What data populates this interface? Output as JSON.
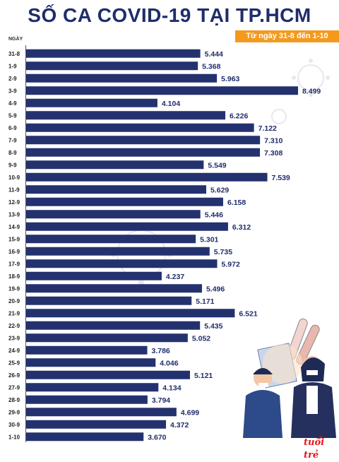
{
  "header": {
    "title": "SỐ CA COVID-19 TẠI TP.HCM",
    "date_range": "Từ ngày 31-8 đến 1-10"
  },
  "axis": {
    "category_label": "NGÀY"
  },
  "colors": {
    "bar": "#23326f",
    "accent": "#f39a1e",
    "title": "#1f2d6b"
  },
  "chart_data": {
    "type": "bar",
    "orientation": "horizontal",
    "title": "SỐ CA COVID-19 TẠI TP.HCM",
    "subtitle": "Từ ngày 31-8 đến 1-10",
    "xlabel": "",
    "ylabel": "NGÀY",
    "xlim": [
      0,
      8499
    ],
    "grid": false,
    "categories": [
      "31-8",
      "1-9",
      "2-9",
      "3-9",
      "4-9",
      "5-9",
      "6-9",
      "7-9",
      "8-9",
      "9-9",
      "10-9",
      "11-9",
      "12-9",
      "13-9",
      "14-9",
      "15-9",
      "16-9",
      "17-9",
      "18-9",
      "19-9",
      "20-9",
      "21-9",
      "22-9",
      "23-9",
      "24-9",
      "25-9",
      "26-9",
      "27-9",
      "28-9",
      "29-9",
      "30-9",
      "1-10"
    ],
    "values": [
      5444,
      5368,
      5963,
      8499,
      4104,
      6226,
      7122,
      7310,
      7308,
      5549,
      7539,
      5629,
      6158,
      5446,
      6312,
      5301,
      5735,
      5972,
      4237,
      5496,
      5171,
      6521,
      5435,
      5052,
      3786,
      4046,
      5121,
      4134,
      3794,
      4699,
      4372,
      3670
    ],
    "labels": [
      "5.444",
      "5.368",
      "5.963",
      "8.499",
      "4.104",
      "6.226",
      "7.122",
      "7.310",
      "7.308",
      "5.549",
      "7.539",
      "5.629",
      "6.158",
      "5.446",
      "6.312",
      "5.301",
      "5.735",
      "5.972",
      "4.237",
      "5.496",
      "5.171",
      "6.521",
      "5.435",
      "5.052",
      "3.786",
      "4.046",
      "5.121",
      "4.134",
      "3.794",
      "4.699",
      "4.372",
      "3.670"
    ]
  },
  "branding": {
    "logo_text": "tuổi trẻ"
  }
}
